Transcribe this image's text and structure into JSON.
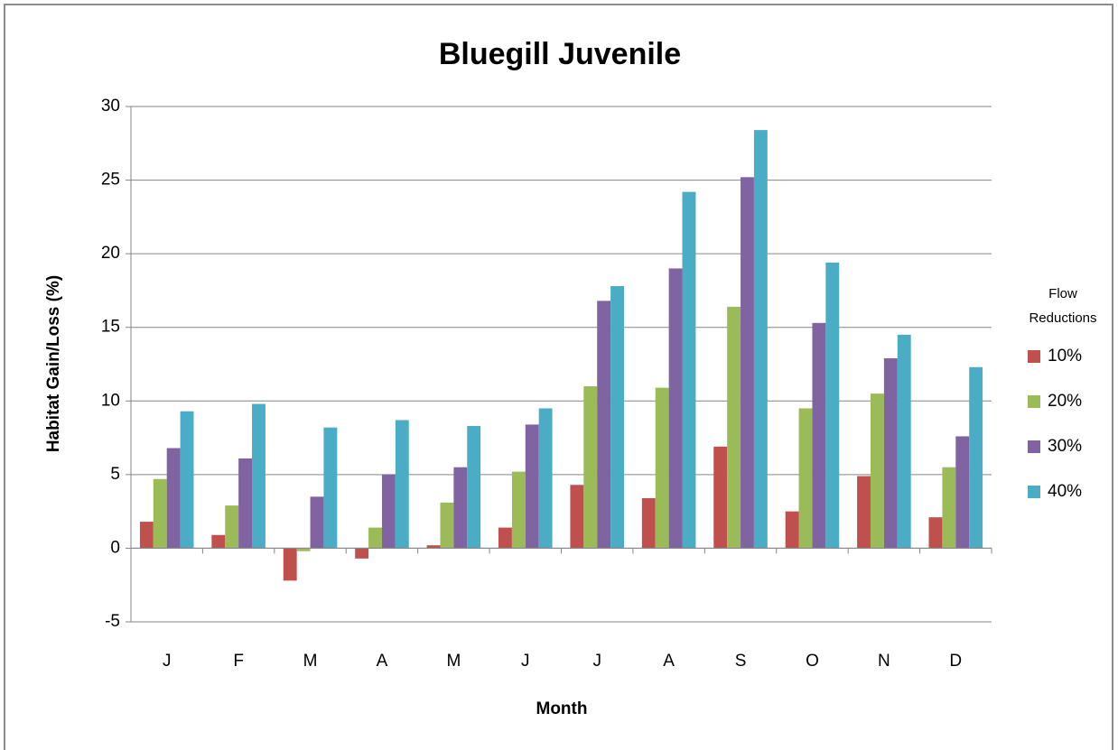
{
  "chart_data": {
    "type": "bar",
    "title": "Bluegill Juvenile",
    "x_label": "Month",
    "y_label": "Habitat Gain/Loss (%)",
    "legend_title": "Flow Reductions",
    "legend_position": "right",
    "categories": [
      "J",
      "F",
      "M",
      "A",
      "M",
      "J",
      "J",
      "A",
      "S",
      "O",
      "N",
      "D"
    ],
    "series": [
      {
        "name": "10%",
        "color": "#c0504d",
        "values": [
          1.8,
          0.9,
          -2.2,
          -0.7,
          0.2,
          1.4,
          4.3,
          3.4,
          6.9,
          2.5,
          4.9,
          2.1
        ]
      },
      {
        "name": "20%",
        "color": "#9bbb59",
        "values": [
          4.7,
          2.9,
          -0.2,
          1.4,
          3.1,
          5.2,
          11.0,
          10.9,
          16.4,
          9.5,
          10.5,
          5.5
        ]
      },
      {
        "name": "30%",
        "color": "#8064a2",
        "values": [
          6.8,
          6.1,
          3.5,
          5.0,
          5.5,
          8.4,
          16.8,
          19.0,
          25.2,
          15.3,
          12.9,
          7.6
        ]
      },
      {
        "name": "40%",
        "color": "#4bacc6",
        "values": [
          9.3,
          9.8,
          8.2,
          8.7,
          8.3,
          9.5,
          17.8,
          24.2,
          28.4,
          19.4,
          14.5,
          12.3
        ]
      }
    ],
    "ylim": [
      -5,
      30
    ],
    "yticks": [
      -5,
      0,
      5,
      10,
      15,
      20,
      25,
      30
    ],
    "grid": true
  }
}
